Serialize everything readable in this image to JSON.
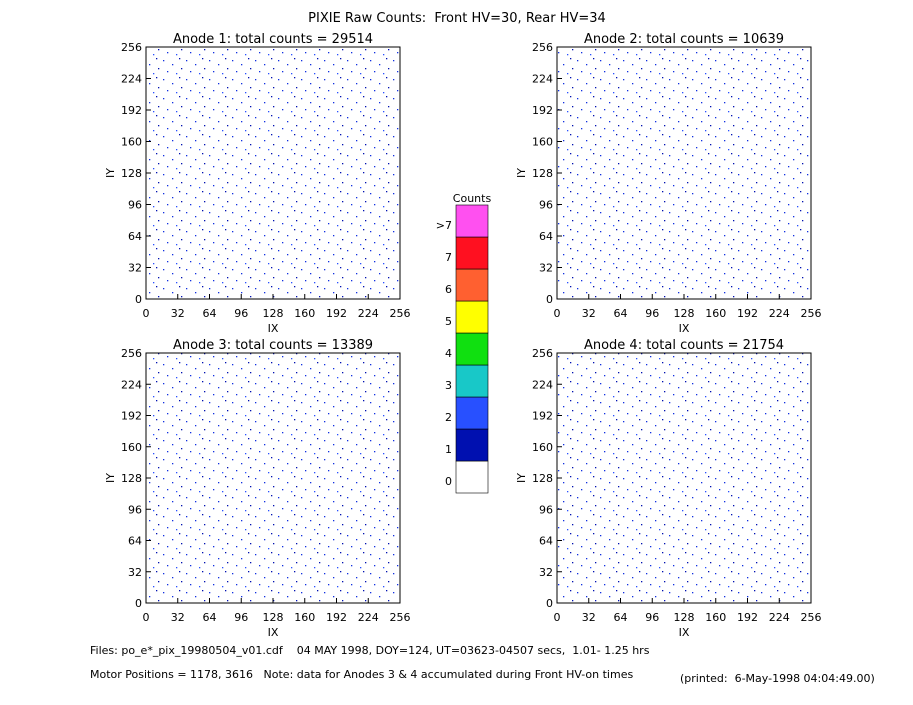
{
  "title": "PIXIE Raw Counts:  Front HV=30, Rear HV=34",
  "chart_data": [
    {
      "type": "heatmap",
      "title": "Anode 1: total counts = 29514",
      "x_label": "IX",
      "y_label": "IY",
      "xlim": [
        0,
        256
      ],
      "ylim": [
        0,
        256
      ],
      "xticks": [
        0,
        32,
        64,
        96,
        128,
        160,
        192,
        224,
        256
      ],
      "yticks": [
        0,
        32,
        64,
        96,
        128,
        160,
        192,
        224,
        256
      ]
    },
    {
      "type": "heatmap",
      "title": "Anode 2: total counts = 10639",
      "x_label": "IX",
      "y_label": "IY",
      "xlim": [
        0,
        256
      ],
      "ylim": [
        0,
        256
      ],
      "xticks": [
        0,
        32,
        64,
        96,
        128,
        160,
        192,
        224,
        256
      ],
      "yticks": [
        0,
        32,
        64,
        96,
        128,
        160,
        192,
        224,
        256
      ]
    },
    {
      "type": "heatmap",
      "title": "Anode 3: total counts = 13389",
      "x_label": "IX",
      "y_label": "IY",
      "xlim": [
        0,
        256
      ],
      "ylim": [
        0,
        256
      ],
      "xticks": [
        0,
        32,
        64,
        96,
        128,
        160,
        192,
        224,
        256
      ],
      "yticks": [
        0,
        32,
        64,
        96,
        128,
        160,
        192,
        224,
        256
      ]
    },
    {
      "type": "heatmap",
      "title": "Anode 4: total counts = 21754",
      "x_label": "IX",
      "y_label": "IY",
      "xlim": [
        0,
        256
      ],
      "ylim": [
        0,
        256
      ],
      "xticks": [
        0,
        32,
        64,
        96,
        128,
        160,
        192,
        224,
        256
      ],
      "yticks": [
        0,
        32,
        64,
        96,
        128,
        160,
        192,
        224,
        256
      ]
    }
  ],
  "colorbar": {
    "title": "Counts",
    "labels": [
      "0",
      "1",
      "2",
      "3",
      "4",
      "5",
      "6",
      "7",
      ">7"
    ],
    "colors": [
      "#ffffff",
      "#0010b0",
      "#2850ff",
      "#18c8c8",
      "#10e010",
      "#ffff00",
      "#ff6030",
      "#ff1020",
      "#ff50f0"
    ]
  },
  "footer": {
    "files": "Files: po_e*_pix_19980504_v01.cdf    04 MAY 1998, DOY=124, UT=03623-04507 secs,  1.01- 1.25 hrs",
    "motor": "Motor Positions = 1178, 3616   Note: data for Anodes 3 & 4 accumulated during Front HV-on times",
    "printed": "(printed:  6-May-1998 04:04:49.00)"
  }
}
